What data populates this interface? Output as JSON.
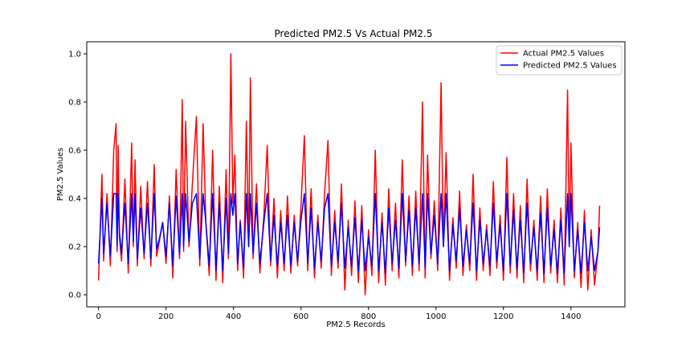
{
  "chart_data": {
    "type": "line",
    "title": "Predicted PM2.5  Vs Actual PM2.5",
    "xlabel": "PM2.5 Records",
    "ylabel": "PM2.5 Values",
    "xlim": [
      -35,
      1560
    ],
    "ylim": [
      -0.05,
      1.05
    ],
    "x_ticks": [
      0,
      200,
      400,
      600,
      800,
      1000,
      1200,
      1400
    ],
    "y_ticks": [
      0.0,
      0.2,
      0.4,
      0.6,
      0.8,
      1.0
    ],
    "x_tick_labels": [
      "0",
      "200",
      "400",
      "600",
      "800",
      "1000",
      "1200",
      "1400"
    ],
    "y_tick_labels": [
      "0.0",
      "0.2",
      "0.4",
      "0.6",
      "0.8",
      "1.0"
    ],
    "legend_position": "top-right",
    "series": [
      {
        "name": "Actual PM2.5 Values",
        "color": "#ff0000",
        "x": [
          0,
          10,
          15,
          25,
          35,
          45,
          52,
          55,
          58,
          62,
          68,
          78,
          88,
          98,
          103,
          108,
          115,
          125,
          135,
          145,
          155,
          165,
          172,
          180,
          190,
          200,
          210,
          220,
          230,
          240,
          248,
          252,
          258,
          268,
          278,
          290,
          300,
          310,
          318,
          328,
          338,
          348,
          358,
          368,
          378,
          385,
          392,
          398,
          404,
          412,
          420,
          430,
          438,
          445,
          450,
          458,
          468,
          478,
          490,
          500,
          510,
          520,
          530,
          540,
          550,
          560,
          570,
          580,
          590,
          600,
          610,
          620,
          630,
          640,
          650,
          660,
          670,
          680,
          690,
          700,
          710,
          720,
          730,
          740,
          750,
          760,
          770,
          780,
          790,
          800,
          810,
          820,
          830,
          840,
          850,
          860,
          870,
          880,
          890,
          900,
          910,
          920,
          930,
          940,
          950,
          960,
          968,
          975,
          985,
          995,
          1005,
          1015,
          1022,
          1030,
          1040,
          1050,
          1060,
          1070,
          1080,
          1090,
          1100,
          1110,
          1120,
          1130,
          1140,
          1150,
          1160,
          1170,
          1180,
          1190,
          1200,
          1210,
          1220,
          1230,
          1240,
          1250,
          1260,
          1270,
          1280,
          1290,
          1300,
          1310,
          1320,
          1330,
          1340,
          1350,
          1360,
          1370,
          1380,
          1390,
          1395,
          1400,
          1410,
          1420,
          1430,
          1440,
          1450,
          1460,
          1470,
          1480,
          1485
        ],
        "values": [
          0.06,
          0.5,
          0.14,
          0.42,
          0.12,
          0.6,
          0.71,
          0.18,
          0.62,
          0.24,
          0.14,
          0.48,
          0.09,
          0.63,
          0.2,
          0.56,
          0.12,
          0.45,
          0.15,
          0.47,
          0.12,
          0.54,
          0.16,
          0.22,
          0.3,
          0.13,
          0.41,
          0.07,
          0.52,
          0.15,
          0.81,
          0.18,
          0.72,
          0.2,
          0.46,
          0.74,
          0.12,
          0.71,
          0.3,
          0.08,
          0.6,
          0.06,
          0.45,
          0.05,
          0.52,
          0.15,
          1.0,
          0.38,
          0.58,
          0.1,
          0.31,
          0.07,
          0.72,
          0.2,
          0.9,
          0.15,
          0.46,
          0.09,
          0.33,
          0.62,
          0.12,
          0.4,
          0.07,
          0.35,
          0.1,
          0.41,
          0.09,
          0.33,
          0.12,
          0.37,
          0.66,
          0.1,
          0.44,
          0.07,
          0.33,
          0.11,
          0.42,
          0.64,
          0.08,
          0.35,
          0.11,
          0.46,
          0.02,
          0.31,
          0.08,
          0.39,
          0.05,
          0.37,
          0.0,
          0.27,
          0.08,
          0.6,
          0.05,
          0.34,
          0.04,
          0.44,
          0.1,
          0.38,
          0.07,
          0.56,
          0.12,
          0.41,
          0.08,
          0.43,
          0.1,
          0.8,
          0.07,
          0.58,
          0.15,
          0.39,
          0.1,
          0.88,
          0.2,
          0.59,
          0.06,
          0.32,
          0.11,
          0.43,
          0.08,
          0.29,
          0.1,
          0.5,
          0.06,
          0.36,
          0.1,
          0.29,
          0.08,
          0.47,
          0.11,
          0.33,
          0.06,
          0.57,
          0.09,
          0.42,
          0.07,
          0.37,
          0.05,
          0.48,
          0.1,
          0.31,
          0.06,
          0.41,
          0.05,
          0.44,
          0.09,
          0.31,
          0.05,
          0.36,
          0.04,
          0.85,
          0.2,
          0.63,
          0.07,
          0.3,
          0.03,
          0.35,
          0.02,
          0.27,
          0.04,
          0.18,
          0.37
        ]
      },
      {
        "name": "Predicted PM2.5 Values",
        "color": "#0000ff",
        "x": [
          0,
          10,
          15,
          25,
          35,
          45,
          52,
          55,
          58,
          62,
          68,
          78,
          88,
          98,
          103,
          108,
          115,
          125,
          135,
          145,
          155,
          165,
          172,
          180,
          190,
          200,
          210,
          220,
          230,
          240,
          248,
          252,
          258,
          268,
          278,
          290,
          300,
          310,
          318,
          328,
          338,
          348,
          358,
          368,
          378,
          385,
          392,
          398,
          404,
          412,
          420,
          430,
          438,
          445,
          450,
          458,
          468,
          478,
          490,
          500,
          510,
          520,
          530,
          540,
          550,
          560,
          570,
          580,
          590,
          600,
          610,
          620,
          630,
          640,
          650,
          660,
          670,
          680,
          690,
          700,
          710,
          720,
          730,
          740,
          750,
          760,
          770,
          780,
          790,
          800,
          810,
          820,
          830,
          840,
          850,
          860,
          870,
          880,
          890,
          900,
          910,
          920,
          930,
          940,
          950,
          960,
          968,
          975,
          985,
          995,
          1005,
          1015,
          1022,
          1030,
          1040,
          1050,
          1060,
          1070,
          1080,
          1090,
          1100,
          1110,
          1120,
          1130,
          1140,
          1150,
          1160,
          1170,
          1180,
          1190,
          1200,
          1210,
          1220,
          1230,
          1240,
          1250,
          1260,
          1270,
          1280,
          1290,
          1300,
          1310,
          1320,
          1330,
          1340,
          1350,
          1360,
          1370,
          1380,
          1390,
          1395,
          1400,
          1410,
          1420,
          1430,
          1440,
          1450,
          1460,
          1470,
          1480,
          1485
        ],
        "values": [
          0.13,
          0.4,
          0.17,
          0.38,
          0.16,
          0.42,
          0.42,
          0.2,
          0.42,
          0.26,
          0.17,
          0.38,
          0.13,
          0.42,
          0.22,
          0.42,
          0.15,
          0.36,
          0.17,
          0.38,
          0.15,
          0.42,
          0.19,
          0.23,
          0.3,
          0.16,
          0.38,
          0.12,
          0.41,
          0.17,
          0.42,
          0.2,
          0.42,
          0.22,
          0.38,
          0.42,
          0.15,
          0.42,
          0.3,
          0.12,
          0.42,
          0.1,
          0.38,
          0.1,
          0.4,
          0.17,
          0.42,
          0.33,
          0.42,
          0.13,
          0.3,
          0.11,
          0.42,
          0.2,
          0.42,
          0.17,
          0.38,
          0.13,
          0.3,
          0.42,
          0.14,
          0.33,
          0.12,
          0.3,
          0.13,
          0.33,
          0.12,
          0.3,
          0.14,
          0.31,
          0.42,
          0.13,
          0.36,
          0.11,
          0.3,
          0.14,
          0.36,
          0.42,
          0.12,
          0.3,
          0.14,
          0.38,
          0.11,
          0.28,
          0.12,
          0.32,
          0.1,
          0.31,
          0.1,
          0.24,
          0.12,
          0.42,
          0.1,
          0.3,
          0.09,
          0.36,
          0.13,
          0.31,
          0.11,
          0.42,
          0.14,
          0.35,
          0.12,
          0.36,
          0.13,
          0.42,
          0.11,
          0.42,
          0.17,
          0.33,
          0.13,
          0.42,
          0.2,
          0.42,
          0.1,
          0.29,
          0.14,
          0.36,
          0.12,
          0.27,
          0.13,
          0.38,
          0.1,
          0.31,
          0.13,
          0.27,
          0.12,
          0.38,
          0.14,
          0.29,
          0.1,
          0.42,
          0.12,
          0.35,
          0.11,
          0.31,
          0.09,
          0.38,
          0.13,
          0.28,
          0.1,
          0.34,
          0.09,
          0.36,
          0.12,
          0.27,
          0.09,
          0.31,
          0.09,
          0.42,
          0.2,
          0.42,
          0.1,
          0.27,
          0.09,
          0.3,
          0.1,
          0.24,
          0.1,
          0.18,
          0.28
        ]
      }
    ]
  }
}
